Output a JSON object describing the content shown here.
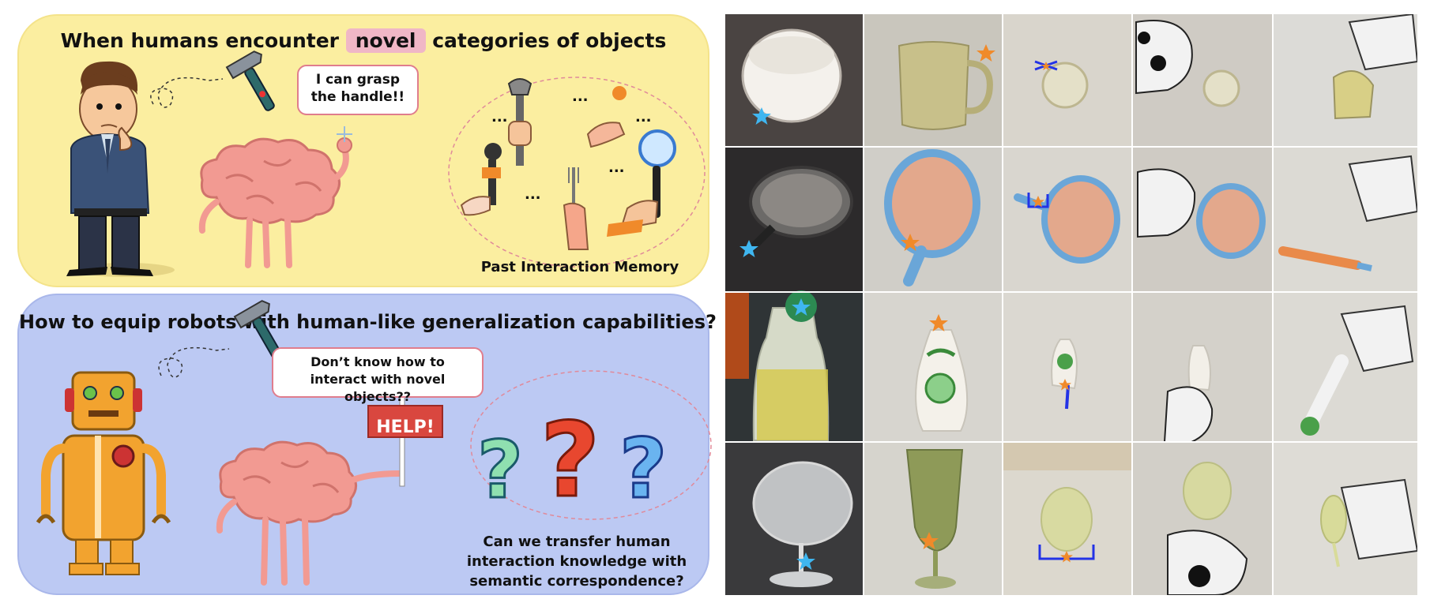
{
  "top_panel": {
    "title_before": "When humans encounter",
    "title_highlight": "novel",
    "title_after": "categories of objects",
    "speech": "I can grasp the handle!!",
    "memory_label": "Past Interaction Memory",
    "ellipsis": "..."
  },
  "bottom_panel": {
    "title": "How to equip robots with human-like generalization capabilities?",
    "speech": "Don’t know how to interact with novel objects??",
    "sign": "HELP!",
    "question": "Can we transfer human interaction knowledge with semantic correspondence?"
  },
  "grid": {
    "rows": [
      "mug",
      "frying-pan",
      "oil-bottle",
      "wine-glass"
    ],
    "columns": [
      "human-demo-image",
      "novel-object-image",
      "keypoint-transfer",
      "robot-grasp-view",
      "robot-manipulation"
    ],
    "colors": {
      "star_blue": "#3fb6f0",
      "star_orange": "#f08a2a",
      "grasp_blue": "#2333e6"
    }
  }
}
